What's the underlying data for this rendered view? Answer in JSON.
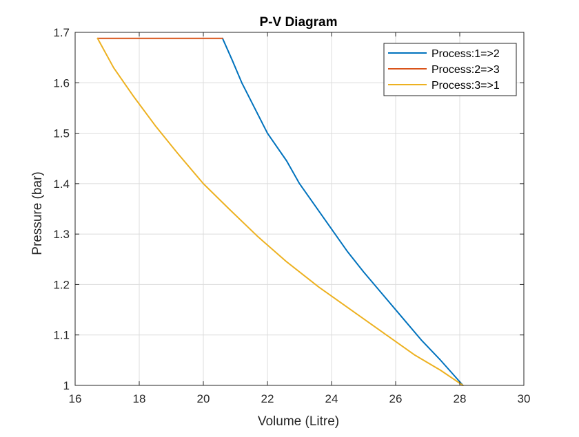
{
  "chart_data": {
    "type": "line",
    "title": "P-V Diagram",
    "xlabel": "Volume (Litre)",
    "ylabel": "Pressure (bar)",
    "xlim": [
      16,
      30
    ],
    "ylim": [
      1,
      1.7
    ],
    "xticks": [
      16,
      18,
      20,
      22,
      24,
      26,
      28,
      30
    ],
    "yticks": [
      1,
      1.1,
      1.2,
      1.3,
      1.4,
      1.5,
      1.6,
      1.7
    ],
    "grid": true,
    "legend_position": "top-right",
    "series": [
      {
        "name": "Process:1=>2",
        "color": "#0072BD",
        "x": [
          28.1,
          27.4,
          26.8,
          26.2,
          25.6,
          25.0,
          24.5,
          24.0,
          23.5,
          23.0,
          22.6,
          22.0,
          21.6,
          21.2,
          20.9,
          20.6
        ],
        "y": [
          1.0,
          1.05,
          1.09,
          1.135,
          1.18,
          1.225,
          1.265,
          1.31,
          1.355,
          1.4,
          1.445,
          1.5,
          1.55,
          1.6,
          1.645,
          1.688
        ]
      },
      {
        "name": "Process:2=>3",
        "color": "#D95319",
        "x": [
          20.6,
          16.7
        ],
        "y": [
          1.688,
          1.688
        ]
      },
      {
        "name": "Process:3=>1",
        "color": "#EDB120",
        "x": [
          16.7,
          17.2,
          17.8,
          18.5,
          19.2,
          20.0,
          20.8,
          21.7,
          22.6,
          23.6,
          24.6,
          25.6,
          26.6,
          27.4,
          28.1
        ],
        "y": [
          1.688,
          1.63,
          1.575,
          1.515,
          1.46,
          1.4,
          1.35,
          1.295,
          1.245,
          1.195,
          1.15,
          1.105,
          1.06,
          1.03,
          1.0
        ]
      }
    ]
  }
}
